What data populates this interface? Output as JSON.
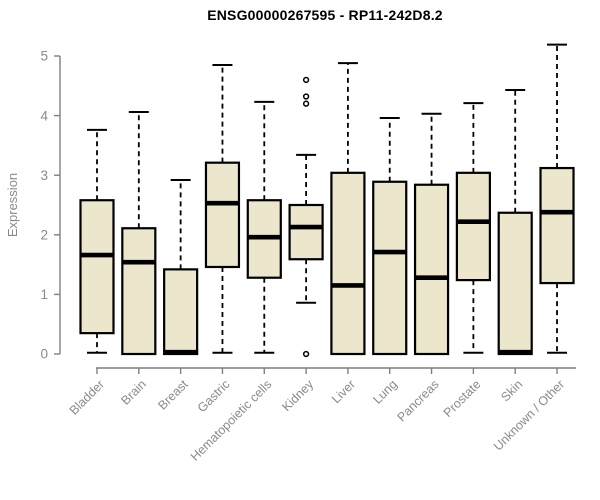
{
  "colors": {
    "box_fill": "#ece6cc",
    "box_border": "#000000",
    "median": "#000000",
    "whisker": "#000000",
    "axis": "#7f7f7f",
    "axis_text": "#8a8a8a",
    "title_text": "#000000",
    "background": "#ffffff"
  },
  "chart_data": {
    "type": "boxplot",
    "title": "ENSG00000267595 - RP11-242D8.2",
    "xlabel": "",
    "ylabel": "Expression",
    "ylim": [
      0,
      5
    ],
    "yticks": [
      0,
      1,
      2,
      3,
      4,
      5
    ],
    "grid": false,
    "legend": false,
    "categories": [
      "Bladder",
      "Brain",
      "Breast",
      "Gastric",
      "Hematopoietic cells",
      "Kidney",
      "Liver",
      "Lung",
      "Pancreas",
      "Prostate",
      "Skin",
      "Unknown / Other"
    ],
    "boxes": [
      {
        "category": "Bladder",
        "whisker_low": 0.02,
        "q1": 0.35,
        "median": 1.66,
        "q3": 2.58,
        "whisker_high": 3.76,
        "outliers": []
      },
      {
        "category": "Brain",
        "whisker_low": 0.0,
        "q1": 0.0,
        "median": 1.54,
        "q3": 2.11,
        "whisker_high": 4.06,
        "outliers": []
      },
      {
        "category": "Breast",
        "whisker_low": 0.0,
        "q1": 0.0,
        "median": 0.03,
        "q3": 1.42,
        "whisker_high": 2.92,
        "outliers": []
      },
      {
        "category": "Gastric",
        "whisker_low": 0.02,
        "q1": 1.46,
        "median": 2.53,
        "q3": 3.21,
        "whisker_high": 4.85,
        "outliers": []
      },
      {
        "category": "Hematopoietic cells",
        "whisker_low": 0.02,
        "q1": 1.28,
        "median": 1.96,
        "q3": 2.58,
        "whisker_high": 4.23,
        "outliers": []
      },
      {
        "category": "Kidney",
        "whisker_low": 0.86,
        "q1": 1.59,
        "median": 2.13,
        "q3": 2.5,
        "whisker_high": 3.34,
        "outliers": [
          4.6,
          4.32,
          4.2,
          0.0
        ]
      },
      {
        "category": "Liver",
        "whisker_low": 0.0,
        "q1": 0.0,
        "median": 1.15,
        "q3": 3.04,
        "whisker_high": 4.88,
        "outliers": []
      },
      {
        "category": "Lung",
        "whisker_low": 0.0,
        "q1": 0.0,
        "median": 1.71,
        "q3": 2.89,
        "whisker_high": 3.96,
        "outliers": []
      },
      {
        "category": "Pancreas",
        "whisker_low": 0.0,
        "q1": 0.0,
        "median": 1.28,
        "q3": 2.84,
        "whisker_high": 4.03,
        "outliers": []
      },
      {
        "category": "Prostate",
        "whisker_low": 0.02,
        "q1": 1.24,
        "median": 2.22,
        "q3": 3.04,
        "whisker_high": 4.21,
        "outliers": []
      },
      {
        "category": "Skin",
        "whisker_low": 0.0,
        "q1": 0.0,
        "median": 0.03,
        "q3": 2.37,
        "whisker_high": 4.43,
        "outliers": []
      },
      {
        "category": "Unknown / Other",
        "whisker_low": 0.02,
        "q1": 1.19,
        "median": 2.38,
        "q3": 3.12,
        "whisker_high": 5.19,
        "outliers": []
      }
    ]
  }
}
